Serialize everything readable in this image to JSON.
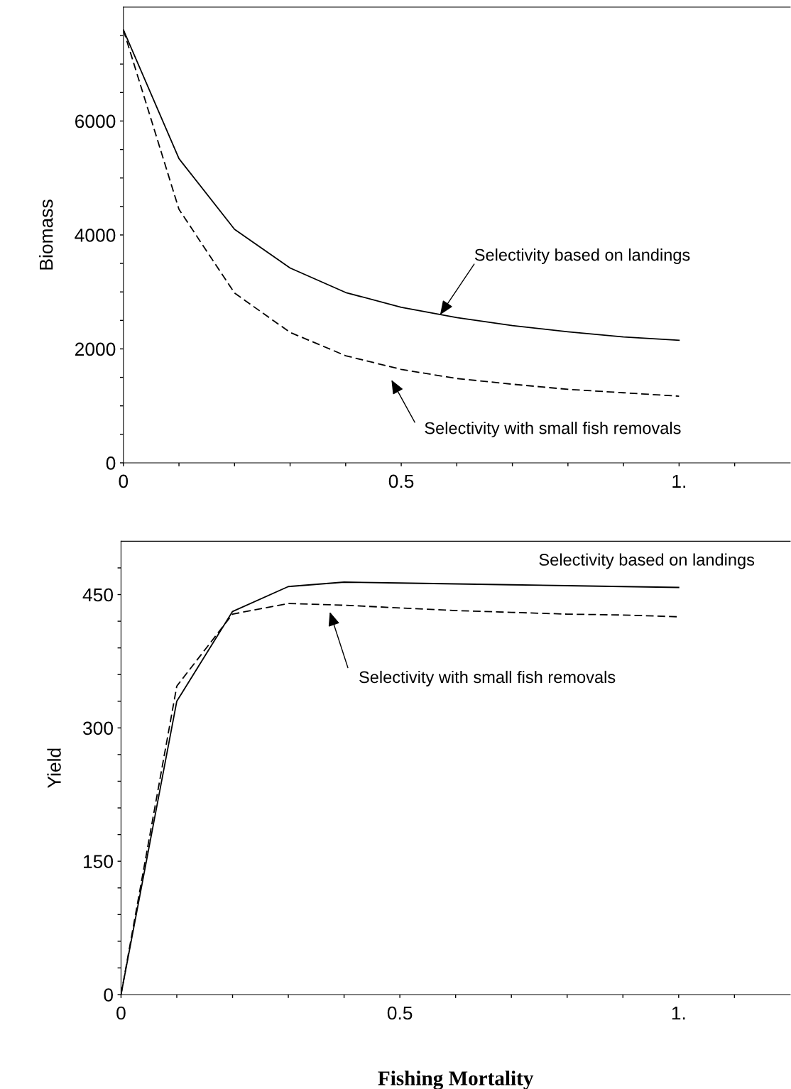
{
  "chart_data": [
    {
      "type": "line",
      "ylabel": "Biomass",
      "x": [
        0,
        0.1,
        0.2,
        0.3,
        0.4,
        0.5,
        0.6,
        0.7,
        0.8,
        0.9,
        1.0
      ],
      "xlim": [
        0,
        1.2
      ],
      "xticks": [
        0,
        {
          "value": 0.1,
          "label": null
        },
        {
          "value": 0.2,
          "label": null
        },
        {
          "value": 0.3,
          "label": null
        },
        {
          "value": 0.4,
          "label": null
        },
        0.5,
        {
          "value": 0.6,
          "label": null
        },
        {
          "value": 0.7,
          "label": null
        },
        {
          "value": 0.8,
          "label": null
        },
        {
          "value": 0.9,
          "label": null
        },
        {
          "value": 1.0,
          "label": "1."
        },
        {
          "value": 1.1,
          "label": null
        }
      ],
      "ylim": [
        0,
        8000
      ],
      "yticks": [
        0,
        {
          "value": 500,
          "label": null
        },
        {
          "value": 1000,
          "label": null
        },
        {
          "value": 1500,
          "label": null
        },
        2000,
        {
          "value": 2500,
          "label": null
        },
        {
          "value": 3000,
          "label": null
        },
        {
          "value": 3500,
          "label": null
        },
        4000,
        {
          "value": 4500,
          "label": null
        },
        {
          "value": 5000,
          "label": null
        },
        {
          "value": 5500,
          "label": null
        },
        6000,
        {
          "value": 6500,
          "label": null
        },
        {
          "value": 7000,
          "label": null
        },
        {
          "value": 7500,
          "label": null
        }
      ],
      "grid": false,
      "legend": false,
      "series": [
        {
          "color": "#000000",
          "line_style": "solid",
          "values": [
            7600,
            5340,
            4100,
            3420,
            2990,
            2730,
            2550,
            2410,
            2300,
            2210,
            2150
          ]
        },
        {
          "color": "#000000",
          "line_style": "dashed",
          "values": [
            7600,
            4450,
            2980,
            2290,
            1880,
            1640,
            1480,
            1380,
            1290,
            1230,
            1170
          ]
        }
      ],
      "annotations": [
        {
          "text": "Selectivity based on landings",
          "x": 0.57,
          "y": 2600
        },
        "Selectivity with small fish removals"
      ]
    },
    {
      "type": "line",
      "ylabel": "Yield",
      "xlabel": "Fishing Mortality",
      "x": [
        0,
        0.1,
        0.2,
        0.3,
        0.4,
        0.5,
        0.6,
        0.7,
        0.8,
        0.9,
        1.0
      ],
      "xlim": [
        0,
        1.2
      ],
      "xticks": [
        0,
        {
          "value": 0.1,
          "label": null
        },
        {
          "value": 0.2,
          "label": null
        },
        {
          "value": 0.3,
          "label": null
        },
        {
          "value": 0.4,
          "label": null
        },
        0.5,
        {
          "value": 0.6,
          "label": null
        },
        {
          "value": 0.7,
          "label": null
        },
        {
          "value": 0.8,
          "label": null
        },
        {
          "value": 0.9,
          "label": null
        },
        {
          "value": 1.0,
          "label": "1."
        },
        {
          "value": 1.1,
          "label": null
        }
      ],
      "ylim": [
        0,
        510
      ],
      "yticks": [
        0,
        {
          "value": 30,
          "label": null
        },
        {
          "value": 60,
          "label": null
        },
        {
          "value": 90,
          "label": null
        },
        {
          "value": 120,
          "label": null
        },
        150,
        {
          "value": 180,
          "label": null
        },
        {
          "value": 210,
          "label": null
        },
        {
          "value": 240,
          "label": null
        },
        {
          "value": 270,
          "label": null
        },
        300,
        {
          "value": 330,
          "label": null
        },
        {
          "value": 360,
          "label": null
        },
        {
          "value": 390,
          "label": null
        },
        {
          "value": 420,
          "label": null
        },
        450,
        {
          "value": 480,
          "label": null
        }
      ],
      "grid": false,
      "legend": false,
      "series": [
        {
          "color": "#000000",
          "line_style": "solid",
          "values": [
            0,
            330,
            431,
            459,
            464,
            463,
            462,
            461,
            460,
            459,
            458
          ]
        },
        {
          "color": "#000000",
          "line_style": "dashed",
          "values": [
            0,
            347,
            428,
            440,
            438,
            435,
            432,
            430,
            428,
            427,
            425
          ]
        }
      ],
      "annotations": [
        "Selectivity based on landings",
        "Selectivity with small fish removals"
      ]
    }
  ]
}
